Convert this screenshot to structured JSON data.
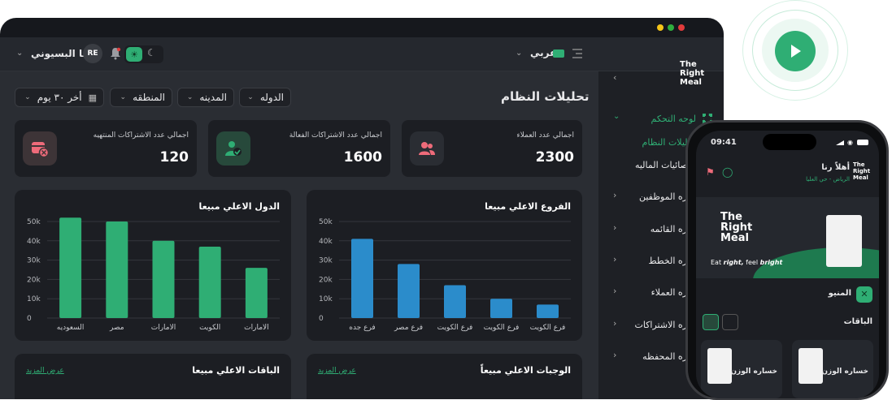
{
  "header": {
    "user_name": "رنا البسيوني",
    "user_initials": "RE",
    "language": "عربي",
    "language_badge": "عربي"
  },
  "page": {
    "title": "تحليلات النظام",
    "filters": [
      "الدوله",
      "المدينه",
      "المنطقه"
    ],
    "date_filter": "أخر ٣٠ يوم"
  },
  "stats": [
    {
      "label": "اجمالي عدد العملاء",
      "value": "2300",
      "icon": "users-icon"
    },
    {
      "label": "اجمالي عدد الاشتراكات الفعالة",
      "value": "1600",
      "icon": "active-subscription-icon"
    },
    {
      "label": "اجمالي عدد الاشتراكات المنتهيه",
      "value": "120",
      "icon": "expired-subscription-icon"
    }
  ],
  "panels": {
    "top_countries_title": "الدول الاعلي مبيعا",
    "top_branches_title": "الفروع الاعلي مبيعا",
    "top_packages_title": "الباقات الاعلي مبيعا",
    "top_meals_title": "الوجبات الاعلي مبيعاً",
    "view_more": "عرض المزيد"
  },
  "chart_data": [
    {
      "type": "bar",
      "title": "الدول الاعلي مبيعا",
      "categories": [
        "السعوديه",
        "مصر",
        "الامارات",
        "الكويت",
        "الامارات"
      ],
      "values": [
        52000,
        50000,
        40000,
        37000,
        26000
      ],
      "ylim": [
        0,
        50000
      ],
      "yticks": [
        "0",
        "10k",
        "20k",
        "30k",
        "40k",
        "50k"
      ],
      "color": "#2fae74",
      "grid": true
    },
    {
      "type": "bar",
      "title": "الفروع الاعلي مبيعا",
      "categories": [
        "فرع جده",
        "فرع مصر",
        "فرع الكويت",
        "فرع الكويت",
        "فرع الكويت"
      ],
      "values": [
        41000,
        28000,
        17000,
        10000,
        7000
      ],
      "ylim": [
        0,
        50000
      ],
      "yticks": [
        "0",
        "10k",
        "20k",
        "30k",
        "40k",
        "50k"
      ],
      "color": "#2b8ccb",
      "grid": true
    }
  ],
  "sidebar": {
    "logo": "The Right Meal",
    "items": [
      {
        "label": "لوحه التحكم",
        "active": true
      },
      {
        "label": "تحليلات النظام",
        "active": true
      },
      {
        "label": "احصائيات الماليه",
        "active": false
      },
      {
        "label": "اداره الموظفين",
        "active": false
      },
      {
        "label": "اداره القائمه",
        "active": false
      },
      {
        "label": "اداره الخطط",
        "active": false
      },
      {
        "label": "اداره العملاء",
        "active": false
      },
      {
        "label": "اداره الاشتراكات",
        "active": false
      },
      {
        "label": "اداره المحفظه",
        "active": false
      }
    ]
  },
  "phone": {
    "time": "09:41",
    "greeting": "أهلاً رنا",
    "location": "الرياض - حي العليا",
    "banner_logo": "The Right Meal",
    "banner_tagline_1": "Eat",
    "banner_tagline_2": "right,",
    "banner_tagline_3": "feel",
    "banner_tagline_4": "bright",
    "menu_label": "المنيو",
    "packages_label": "الباقات",
    "package_items": [
      "خساره الوزن",
      "خساره الوزن"
    ]
  },
  "colors": {
    "accent": "#2fae74",
    "blue": "#2b8ccb",
    "background": "#2a2d33",
    "panel": "#1c1e23"
  }
}
